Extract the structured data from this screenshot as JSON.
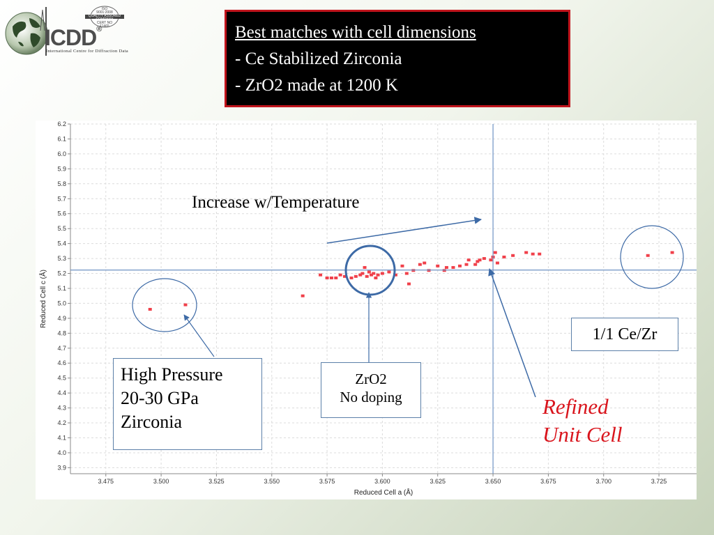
{
  "header": {
    "title_lines": [
      "Best matches with cell dimensions",
      "- Ce  Stabilized Zirconia",
      "- ZrO2 made at 1200 K"
    ]
  },
  "logo": {
    "word": "ICDD",
    "registered": "®",
    "subtitle": "International Centre for Diffraction Data",
    "seal_lines": [
      "ISO",
      "9001:2008",
      "QUALITY ASSURED COMPANY",
      "CERT NO",
      "11465"
    ]
  },
  "annotations": {
    "increase": "Increase w/Temperature",
    "high_pressure": [
      "High Pressure",
      "20-30 GPa",
      "Zirconia"
    ],
    "zro2": [
      "ZrO2",
      "No doping"
    ],
    "ce_zr": "1/1 Ce/Zr",
    "refined": [
      "Refined",
      "Unit Cell"
    ]
  },
  "chart_data": {
    "type": "scatter",
    "xlabel": "Reduced Cell a (Å)",
    "ylabel": "Reduced Cell c (Å)",
    "xlim": [
      3.459,
      3.742
    ],
    "ylim": [
      3.86,
      6.2
    ],
    "x_ticks": [
      3.475,
      3.5,
      3.525,
      3.55,
      3.575,
      3.6,
      3.625,
      3.65,
      3.675,
      3.7,
      3.725
    ],
    "x_tick_labels": [
      "3.475",
      "3.500",
      "3.525",
      "3.550",
      "3.575",
      "3.600",
      "3.625",
      "3.650",
      "3.675",
      "3.700",
      "3.725"
    ],
    "y_ticks": [
      3.9,
      4.0,
      4.1,
      4.2,
      4.3,
      4.4,
      4.5,
      4.6,
      4.7,
      4.8,
      4.9,
      5.0,
      5.1,
      5.2,
      5.3,
      5.4,
      5.5,
      5.6,
      5.7,
      5.8,
      5.9,
      6.0,
      6.1,
      6.2
    ],
    "y_tick_labels": [
      "3.9",
      "4.0",
      "4.1",
      "4.2",
      "4.3",
      "4.4",
      "4.5",
      "4.6",
      "4.7",
      "4.8",
      "4.9",
      "5.0",
      "5.1",
      "5.2",
      "5.3",
      "5.4",
      "5.5",
      "5.6",
      "5.7",
      "5.8",
      "5.9",
      "6.0",
      "6.1",
      "6.2"
    ],
    "grid": true,
    "crosshair": {
      "x": 3.65,
      "y": 5.223
    },
    "point_color": "#f0404a",
    "points": [
      [
        3.495,
        4.96
      ],
      [
        3.511,
        4.99
      ],
      [
        3.564,
        5.05
      ],
      [
        3.572,
        5.19
      ],
      [
        3.575,
        5.17
      ],
      [
        3.577,
        5.17
      ],
      [
        3.579,
        5.17
      ],
      [
        3.581,
        5.19
      ],
      [
        3.583,
        5.18
      ],
      [
        3.586,
        5.17
      ],
      [
        3.588,
        5.18
      ],
      [
        3.59,
        5.19
      ],
      [
        3.591,
        5.2
      ],
      [
        3.592,
        5.24
      ],
      [
        3.593,
        5.18
      ],
      [
        3.594,
        5.21
      ],
      [
        3.595,
        5.19
      ],
      [
        3.596,
        5.2
      ],
      [
        3.597,
        5.17
      ],
      [
        3.598,
        5.19
      ],
      [
        3.6,
        5.2
      ],
      [
        3.603,
        5.21
      ],
      [
        3.606,
        5.19
      ],
      [
        3.609,
        5.25
      ],
      [
        3.611,
        5.2
      ],
      [
        3.612,
        5.13
      ],
      [
        3.614,
        5.22
      ],
      [
        3.617,
        5.26
      ],
      [
        3.619,
        5.27
      ],
      [
        3.621,
        5.22
      ],
      [
        3.625,
        5.25
      ],
      [
        3.628,
        5.22
      ],
      [
        3.629,
        5.24
      ],
      [
        3.632,
        5.24
      ],
      [
        3.635,
        5.25
      ],
      [
        3.638,
        5.26
      ],
      [
        3.639,
        5.29
      ],
      [
        3.642,
        5.26
      ],
      [
        3.643,
        5.28
      ],
      [
        3.644,
        5.29
      ],
      [
        3.646,
        5.3
      ],
      [
        3.649,
        5.29
      ],
      [
        3.65,
        5.31
      ],
      [
        3.651,
        5.34
      ],
      [
        3.652,
        5.27
      ],
      [
        3.655,
        5.31
      ],
      [
        3.659,
        5.32
      ],
      [
        3.665,
        5.34
      ],
      [
        3.668,
        5.33
      ],
      [
        3.671,
        5.33
      ],
      [
        3.72,
        5.32
      ],
      [
        3.731,
        5.34
      ]
    ]
  },
  "colors": {
    "title_border": "#c0141c",
    "refined_text": "#d9141c",
    "callout_line": "#3d6aa6"
  }
}
